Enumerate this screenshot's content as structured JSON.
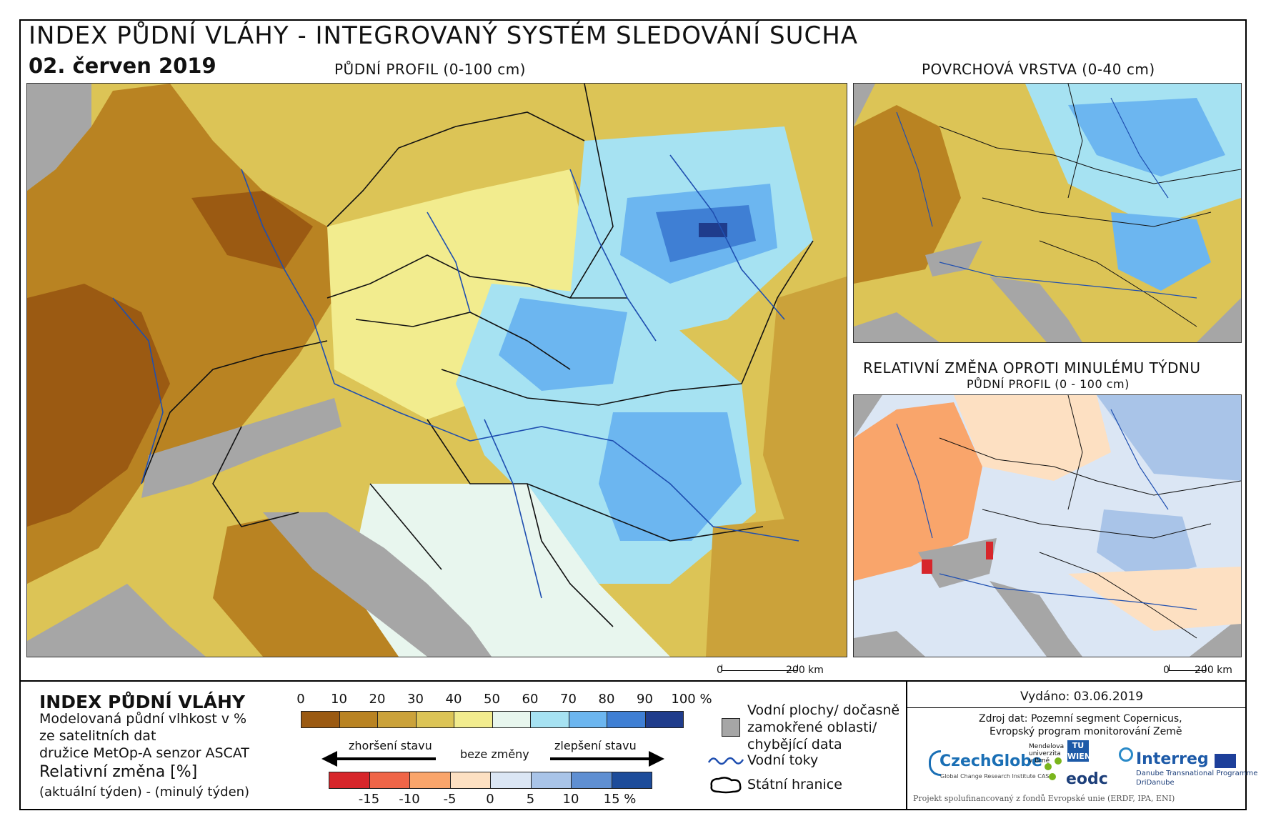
{
  "header": {
    "title": "INDEX PŮDNÍ VLÁHY - INTEGROVANÝ SYSTÉM SLEDOVÁNÍ SUCHA",
    "date": "02. červen 2019"
  },
  "maps": {
    "main_caption": "PŮDNÍ PROFIL (0-100 cm)",
    "surface_caption": "POVRCHOVÁ VRSTVA (0-40 cm)",
    "change_caption": "RELATIVNÍ ZMĚNA OPROTI MINULÉMU TÝDNU",
    "change_subcaption": "PŮDNÍ PROFIL (0 - 100 cm)",
    "scale_main": {
      "zero": "0",
      "end": "200 km"
    },
    "scale_small": {
      "zero": "0",
      "end": "200 km"
    }
  },
  "legend": {
    "title": "INDEX PŮDNÍ VLÁHY",
    "desc_lines": [
      "Modelovaná půdní vlhkost v %",
      "ze satelitních dat",
      "družice MetOp-A senzor ASCAT"
    ],
    "rel_title": "Relativní změna [%]",
    "rel_sub": "(aktuální týden) - (minulý týden)",
    "index_ticks": [
      "0",
      "10",
      "20",
      "30",
      "40",
      "50",
      "60",
      "70",
      "80",
      "90",
      "100 %"
    ],
    "index_colors": [
      "#9b5a12",
      "#b98322",
      "#cba23a",
      "#dcc456",
      "#f2ec8e",
      "#e8f6ee",
      "#a6e2f2",
      "#6cb6f0",
      "#3f7fd4",
      "#1f3c8c"
    ],
    "worse_label": "zhoršení stavu",
    "nochange_label": "beze změny",
    "better_label": "zlepšení stavu",
    "change_ticks": [
      "-15",
      "-10",
      "-5",
      "0",
      "5",
      "10",
      "15 %"
    ],
    "change_colors": [
      "#d7262b",
      "#ef6548",
      "#f9a56b",
      "#fde0c2",
      "#dbe6f4",
      "#a9c4e8",
      "#5f8fd2",
      "#1d4c9a"
    ],
    "water_label_lines": [
      "Vodní plochy/ dočasně",
      "zamokřené oblasti/",
      "chybějící data"
    ],
    "rivers_label": "Vodní toky",
    "borders_label": "Státní hranice"
  },
  "credits": {
    "issued": "Vydáno: 03.06.2019",
    "source_lines": [
      "Zdroj dat: Pozemní segment Copernicus,",
      "Evropský program monitorování Země"
    ],
    "logos": {
      "czechglobe": "CzechGlobe",
      "czechglobe_sub": "Global Change Research Institute CAS",
      "mendel": "Mendelova univerzita v Brně",
      "tuwien": "TU WIEN",
      "eodc": "eodc",
      "interreg": "Interreg",
      "interreg_sub": "Danube Transnational Programme",
      "dridanube": "DriDanube"
    },
    "footer": "Projekt spolufinancovaný z fondů Evropské unie (ERDF, IPA, ENI)"
  },
  "colors": {
    "sea": "#a6a6a6",
    "river": "#1f4fb0",
    "border": "#111111"
  }
}
